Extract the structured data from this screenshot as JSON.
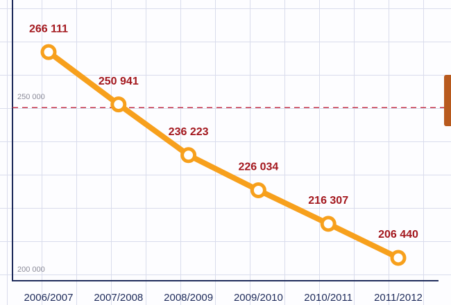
{
  "chart_data": {
    "type": "line",
    "categories": [
      "2006/2007",
      "2007/2008",
      "2008/2009",
      "2009/2010",
      "2010/2011",
      "2011/2012"
    ],
    "values": [
      266111,
      250941,
      236223,
      226034,
      216307,
      206440
    ],
    "value_labels": [
      "266 111",
      "250 941",
      "236 223",
      "226 034",
      "216 307",
      "206 440"
    ],
    "color": "#f7a01c",
    "ylim": [
      200000,
      280000
    ],
    "yticks": [
      {
        "value": 200000,
        "label": "200 000"
      },
      {
        "value": 250000,
        "label": "250 000"
      }
    ]
  }
}
